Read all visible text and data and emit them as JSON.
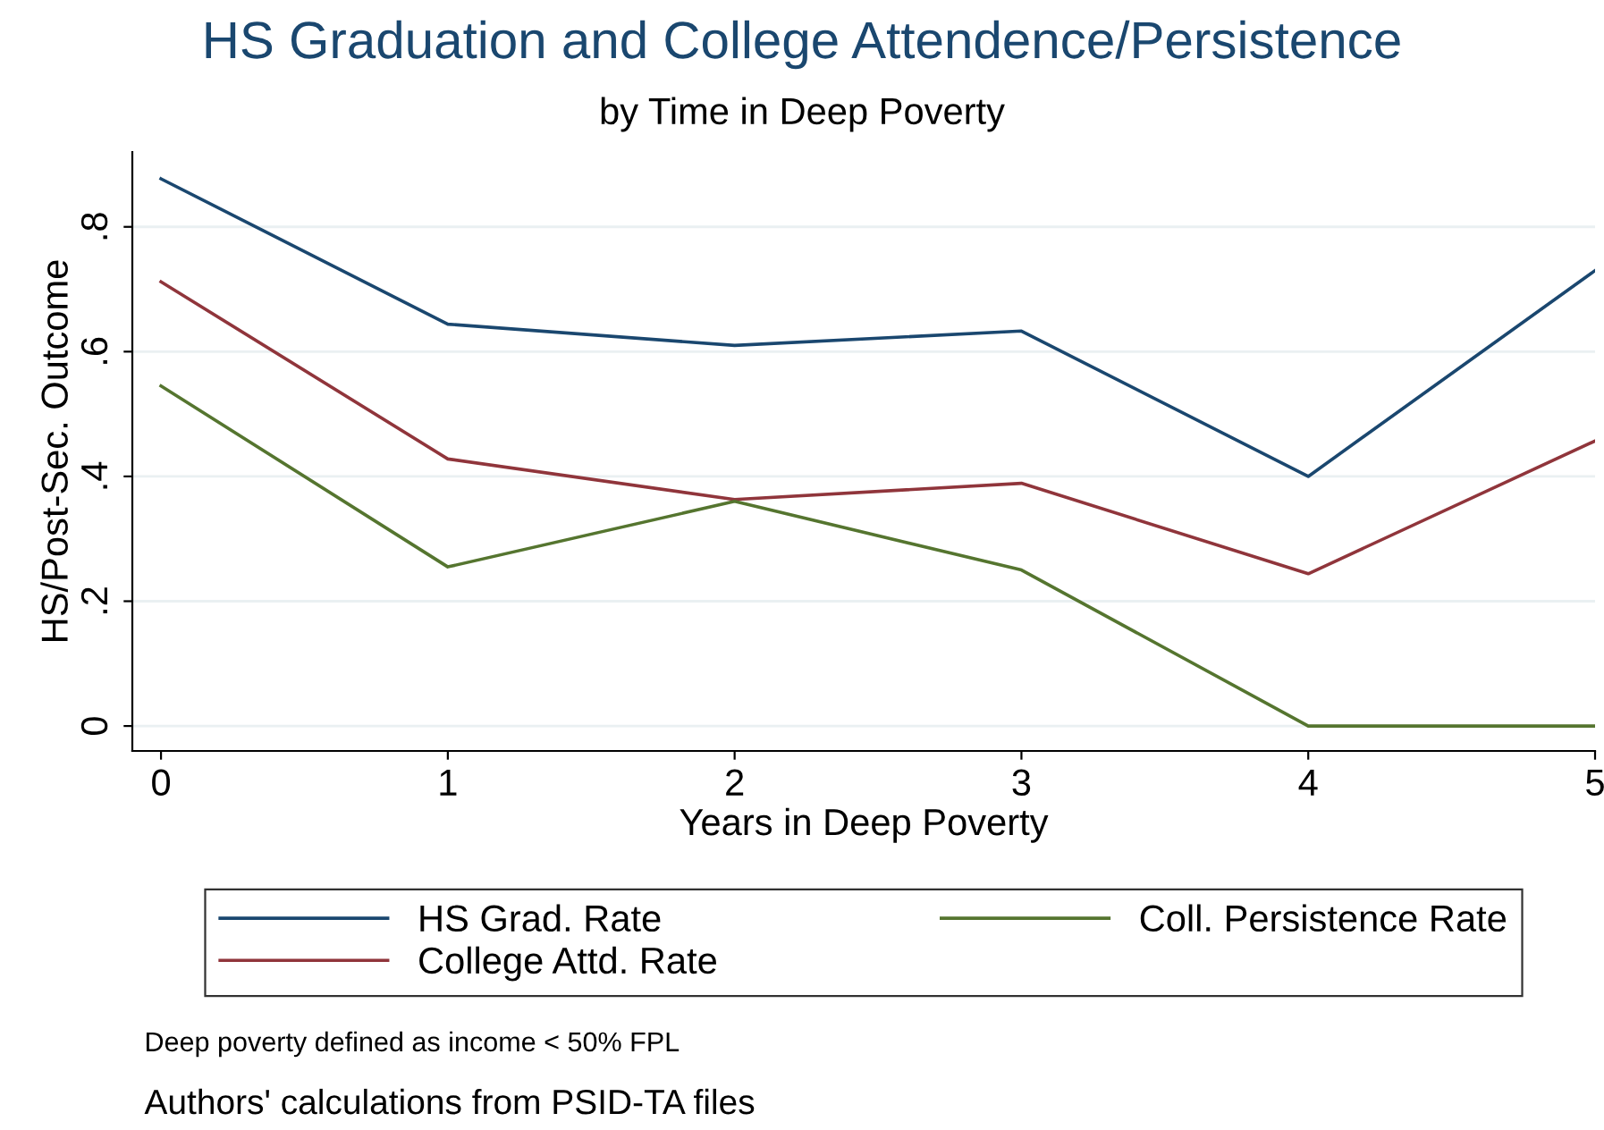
{
  "chart_data": {
    "type": "line",
    "title": "HS Graduation and College Attendence/Persistence",
    "subtitle": "by Time in Deep Poverty",
    "xlabel": "Years in Deep Poverty",
    "ylabel": "HS/Post-Sec. Outcome",
    "x": [
      0,
      1,
      2,
      3,
      4,
      5
    ],
    "series": [
      {
        "name": "HS Grad. Rate",
        "color": "#1a476f",
        "values": [
          0.877,
          0.644,
          0.61,
          0.633,
          0.4,
          0.73
        ]
      },
      {
        "name": "College Attd. Rate",
        "color": "#90353b",
        "values": [
          0.712,
          0.428,
          0.363,
          0.389,
          0.244,
          0.457
        ]
      },
      {
        "name": "Coll. Persistence Rate",
        "color": "#55752f",
        "values": [
          0.545,
          0.255,
          0.36,
          0.25,
          0,
          0
        ]
      }
    ],
    "xlim": [
      -0.1,
      5
    ],
    "ylim": [
      -0.04,
      0.92
    ],
    "xticks": [
      0,
      1,
      2,
      3,
      4,
      5
    ],
    "yticks": [
      {
        "value": 0,
        "label": "0"
      },
      {
        "value": 0.2,
        "label": ".2"
      },
      {
        "value": 0.4,
        "label": ".4"
      },
      {
        "value": 0.6,
        "label": ".6"
      },
      {
        "value": 0.8,
        "label": ".8"
      }
    ],
    "grid": "y",
    "legend": "bottom",
    "marker": "none",
    "line_style": "solid",
    "annotations": [
      "Deep poverty defined as income < 50% FPL",
      "Authors' calculations from PSID-TA files"
    ]
  }
}
